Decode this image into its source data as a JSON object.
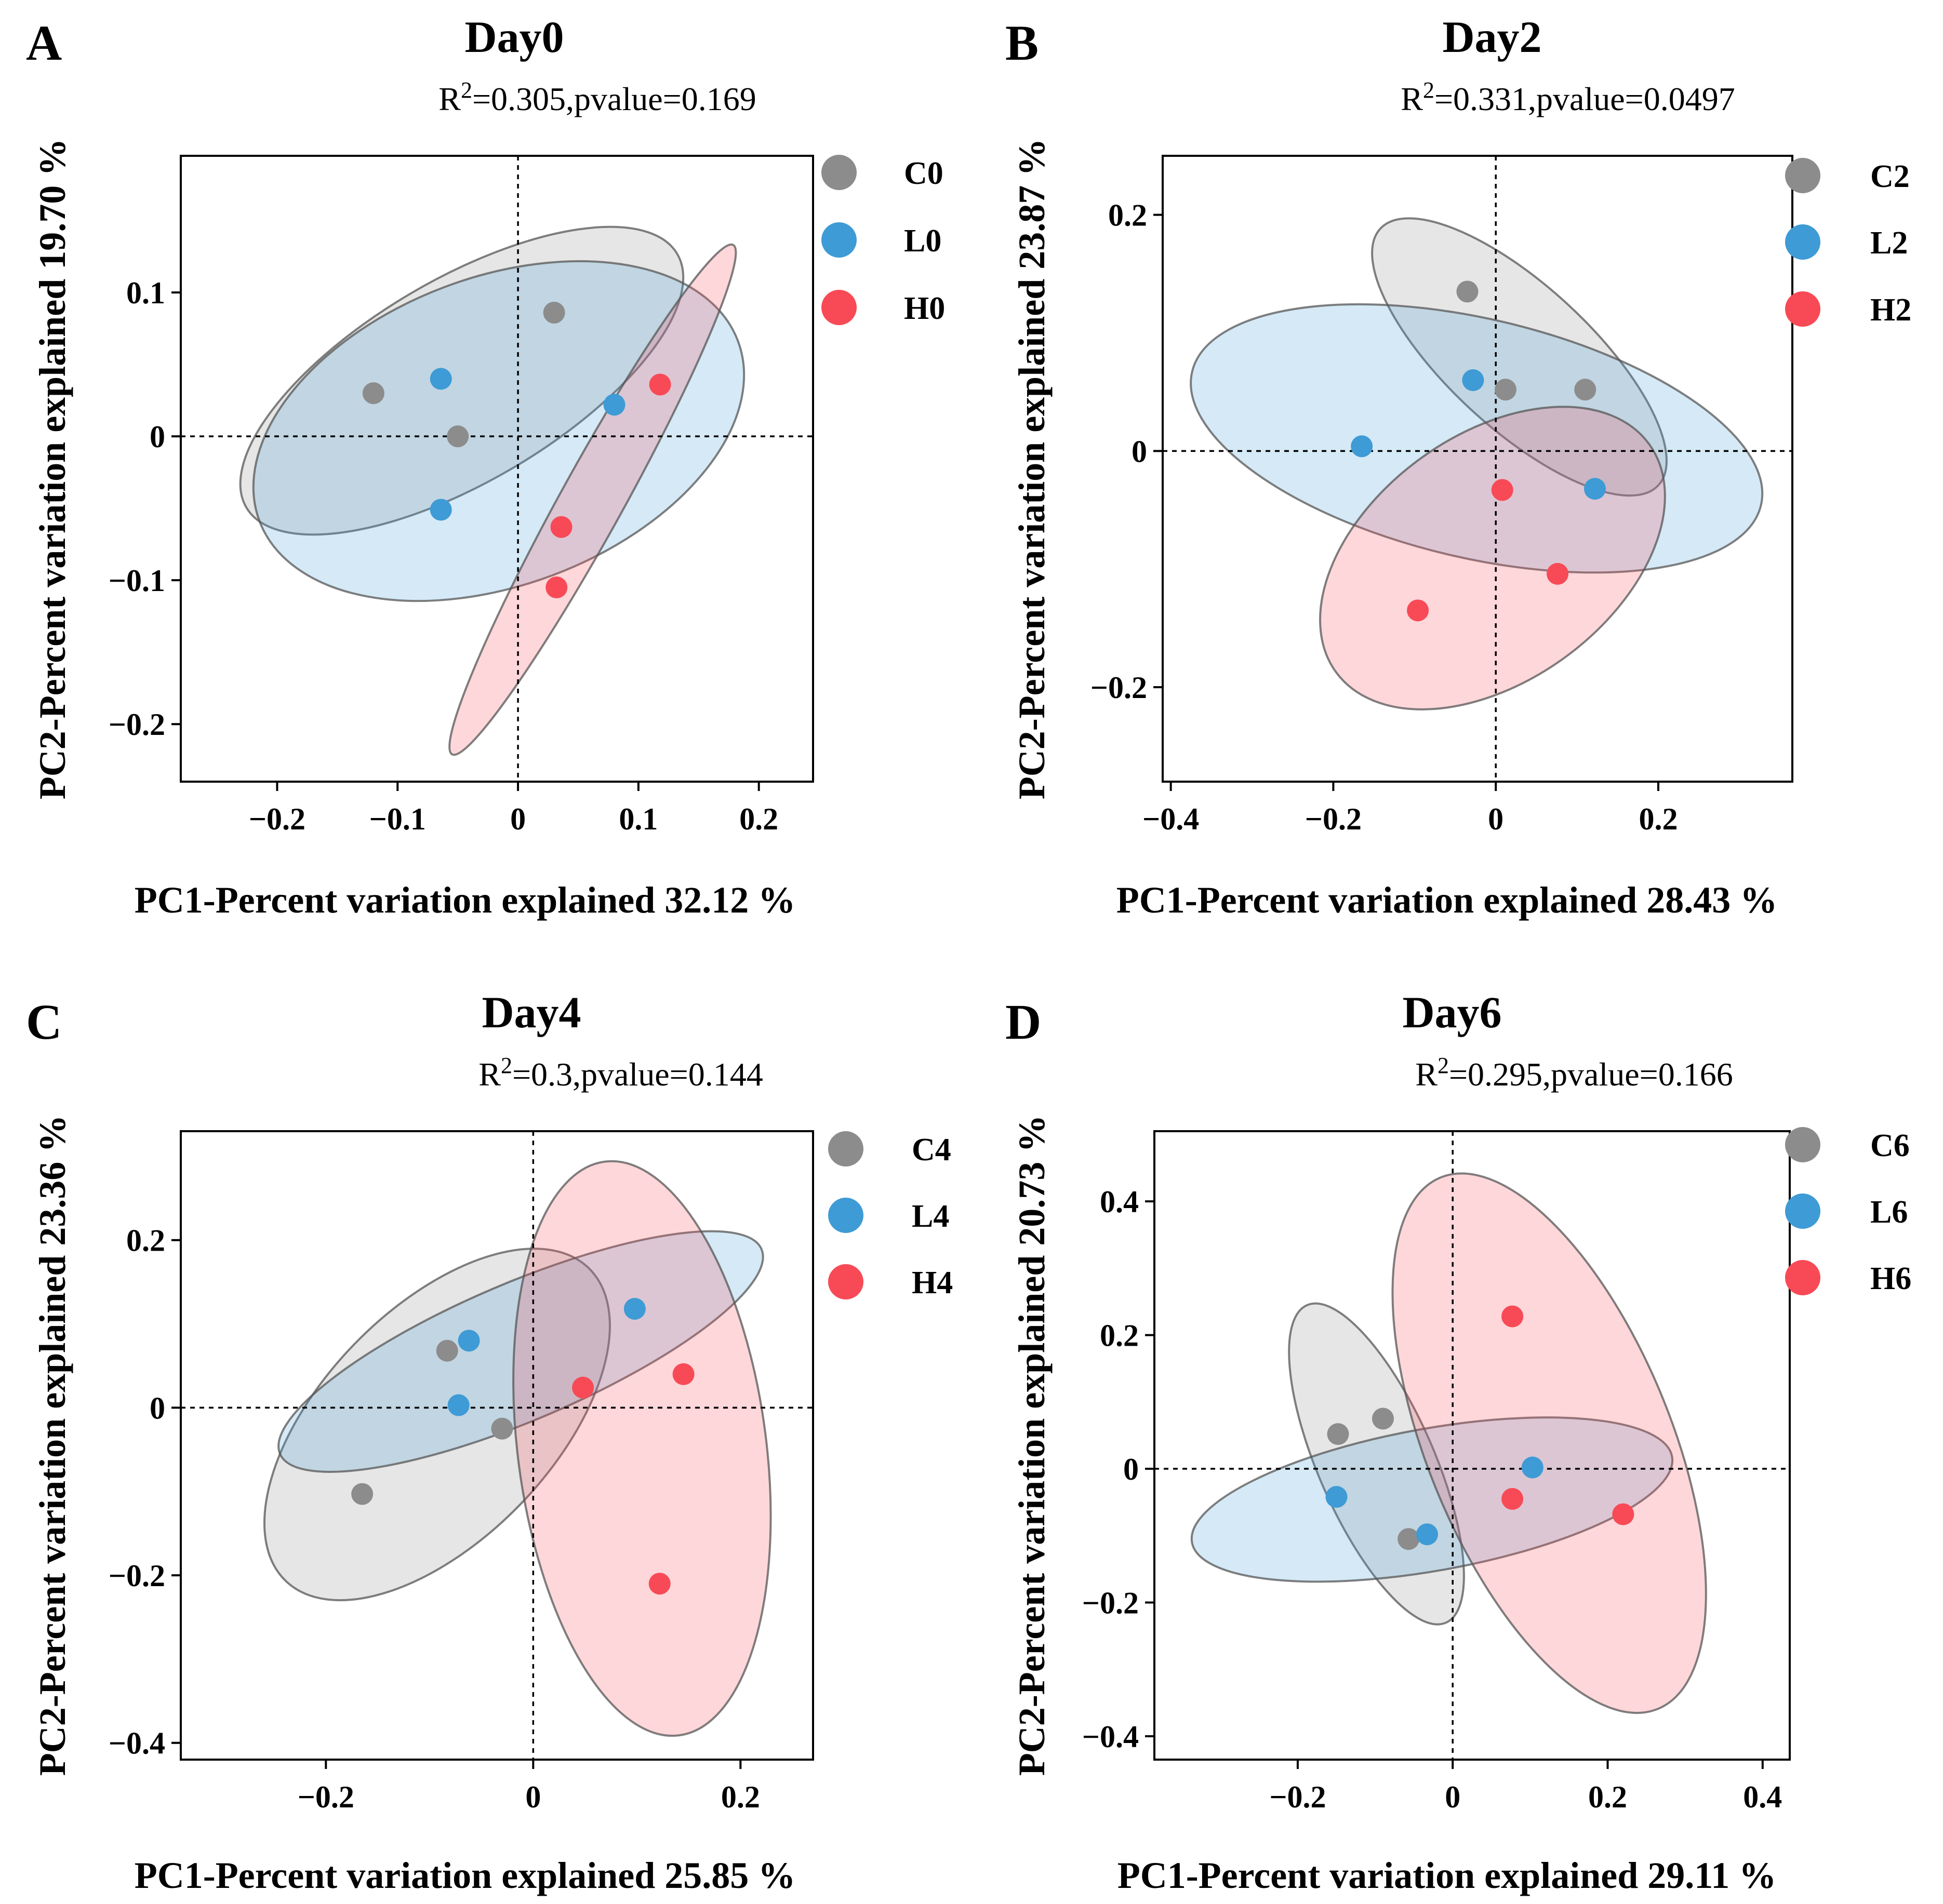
{
  "colors": {
    "C": "#8c8c8c",
    "L": "#3e9bd5",
    "H": "#f84a56"
  },
  "chart_data": [
    {
      "type": "scatter",
      "panel": "A",
      "title": "Day0",
      "stat_r2_label": "R",
      "stat_r2_sup": "2",
      "stat_rest": "=0.305,pvalue=0.169",
      "xlabel": "PC1-Percent variation explained 32.12 %",
      "ylabel": "PC2-Percent variation explained 19.70 %",
      "xlim": [
        -0.28,
        0.245
      ],
      "ylim": [
        -0.24,
        0.195
      ],
      "xticks": [
        -0.2,
        -0.1,
        0,
        0.1,
        0.2
      ],
      "xtick_labels": [
        "−0.2",
        "−0.1",
        "0",
        "0.1",
        "0.2"
      ],
      "yticks": [
        -0.2,
        -0.1,
        0,
        0.1
      ],
      "ytick_labels": [
        "−0.2",
        "−0.1",
        "0",
        "0.1"
      ],
      "series": [
        {
          "name": "C0",
          "group": "C",
          "points": [
            [
              -0.12,
              0.03
            ],
            [
              -0.05,
              0.0
            ],
            [
              0.03,
              0.086
            ]
          ]
        },
        {
          "name": "L0",
          "group": "L",
          "points": [
            [
              -0.064,
              0.04
            ],
            [
              -0.064,
              -0.051
            ],
            [
              0.08,
              0.022
            ]
          ]
        },
        {
          "name": "H0",
          "group": "H",
          "points": [
            [
              0.118,
              0.036
            ],
            [
              0.036,
              -0.063
            ],
            [
              0.032,
              -0.105
            ]
          ]
        }
      ]
    },
    {
      "type": "scatter",
      "panel": "B",
      "title": "Day2",
      "stat_r2_label": "R",
      "stat_r2_sup": "2",
      "stat_rest": "=0.331,pvalue=0.0497",
      "xlabel": "PC1-Percent variation explained 28.43 %",
      "ylabel": "PC2-Percent variation explained 23.87 %",
      "xlim": [
        -0.41,
        0.365
      ],
      "ylim": [
        -0.28,
        0.25
      ],
      "xticks": [
        -0.4,
        -0.2,
        0,
        0.2
      ],
      "xtick_labels": [
        "−0.4",
        "−0.2",
        "0",
        "0.2"
      ],
      "yticks": [
        -0.2,
        0,
        0.2
      ],
      "ytick_labels": [
        "−0.2",
        "0",
        "0.2"
      ],
      "series": [
        {
          "name": "C2",
          "group": "C",
          "points": [
            [
              -0.035,
              0.135
            ],
            [
              0.012,
              0.052
            ],
            [
              0.11,
              0.052
            ]
          ]
        },
        {
          "name": "L2",
          "group": "L",
          "points": [
            [
              -0.165,
              0.004
            ],
            [
              -0.028,
              0.06
            ],
            [
              0.122,
              -0.032
            ]
          ]
        },
        {
          "name": "H2",
          "group": "H",
          "points": [
            [
              0.008,
              -0.033
            ],
            [
              0.076,
              -0.104
            ],
            [
              -0.096,
              -0.135
            ]
          ]
        }
      ]
    },
    {
      "type": "scatter",
      "panel": "C",
      "title": "Day4",
      "stat_r2_label": "R",
      "stat_r2_sup": "2",
      "stat_rest": "=0.3,pvalue=0.144",
      "xlabel": "PC1-Percent variation explained 25.85 %",
      "ylabel": "PC2-Percent variation explained 23.36 %",
      "xlim": [
        -0.34,
        0.27
      ],
      "ylim": [
        -0.42,
        0.33
      ],
      "xticks": [
        -0.2,
        0,
        0.2
      ],
      "xtick_labels": [
        "−0.2",
        "0",
        "0.2"
      ],
      "yticks": [
        -0.4,
        -0.2,
        0,
        0.2
      ],
      "ytick_labels": [
        "−0.4",
        "−0.2",
        "0",
        "0.2"
      ],
      "series": [
        {
          "name": "C4",
          "group": "C",
          "points": [
            [
              -0.083,
              0.068
            ],
            [
              -0.03,
              -0.025
            ],
            [
              -0.165,
              -0.103
            ]
          ]
        },
        {
          "name": "L4",
          "group": "L",
          "points": [
            [
              -0.062,
              0.08
            ],
            [
              -0.072,
              0.003
            ],
            [
              0.098,
              0.118
            ]
          ]
        },
        {
          "name": "H4",
          "group": "H",
          "points": [
            [
              0.048,
              0.024
            ],
            [
              0.145,
              0.04
            ],
            [
              0.122,
              -0.21
            ]
          ]
        }
      ]
    },
    {
      "type": "scatter",
      "panel": "D",
      "title": "Day6",
      "stat_r2_label": "R",
      "stat_r2_sup": "2",
      "stat_rest": "=0.295,pvalue=0.166",
      "xlabel": "PC1-Percent variation explained 29.11 %",
      "ylabel": "PC2-Percent variation explained 20.73 %",
      "xlim": [
        -0.385,
        0.435
      ],
      "ylim": [
        -0.435,
        0.505
      ],
      "xticks": [
        -0.2,
        0,
        0.2,
        0.4
      ],
      "xtick_labels": [
        "−0.2",
        "0",
        "0.2",
        "0.4"
      ],
      "yticks": [
        -0.4,
        -0.2,
        0,
        0.2,
        0.4
      ],
      "ytick_labels": [
        "−0.4",
        "−0.2",
        "0",
        "0.2",
        "0.4"
      ],
      "series": [
        {
          "name": "C6",
          "group": "C",
          "points": [
            [
              -0.148,
              0.052
            ],
            [
              -0.09,
              0.075
            ],
            [
              -0.057,
              -0.105
            ]
          ]
        },
        {
          "name": "L6",
          "group": "L",
          "points": [
            [
              -0.15,
              -0.042
            ],
            [
              -0.033,
              -0.098
            ],
            [
              0.103,
              0.002
            ]
          ]
        },
        {
          "name": "H6",
          "group": "H",
          "points": [
            [
              0.077,
              0.228
            ],
            [
              0.077,
              -0.045
            ],
            [
              0.22,
              -0.068
            ]
          ]
        }
      ]
    }
  ]
}
